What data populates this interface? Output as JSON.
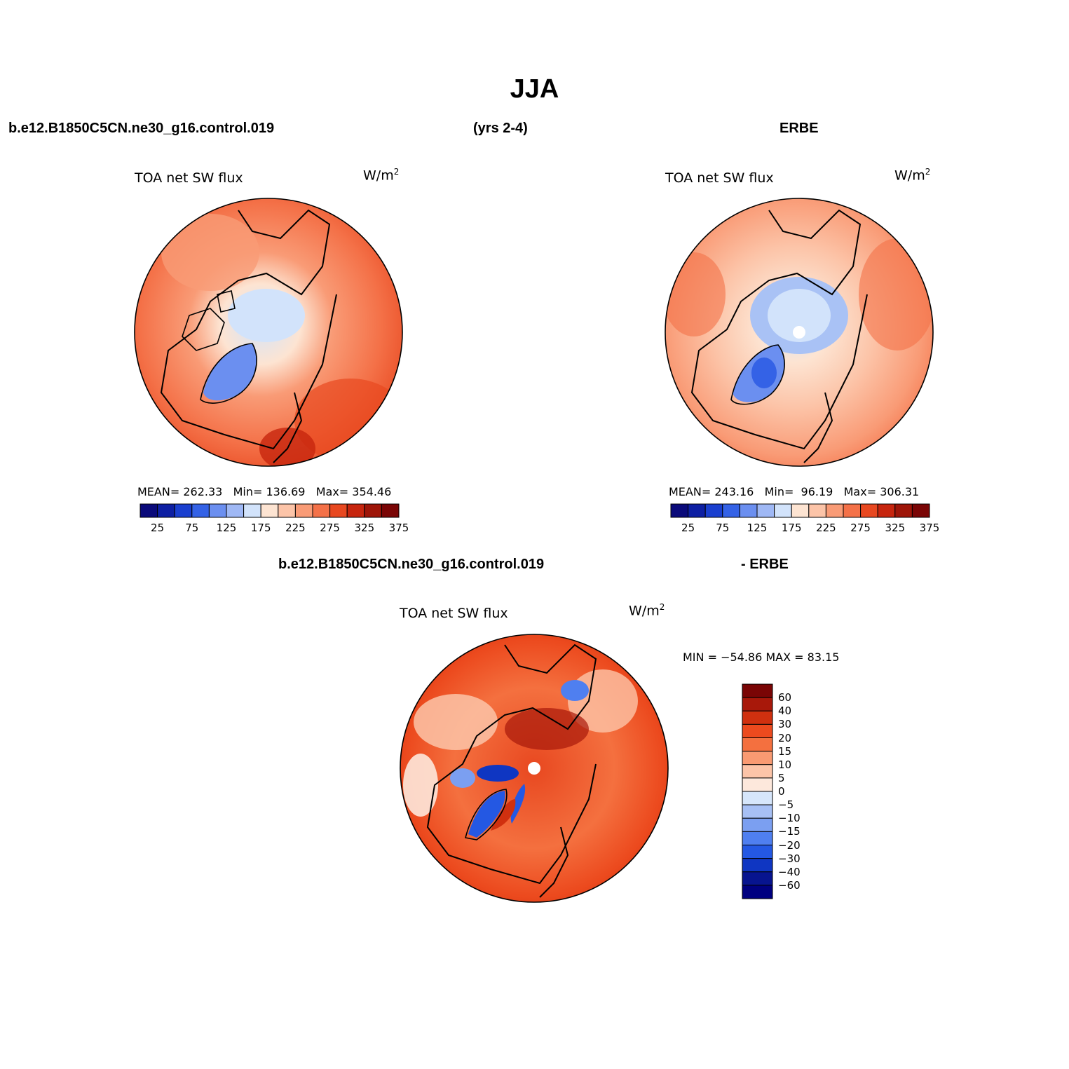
{
  "figure": {
    "title": "JJA",
    "case_name": "b.e12.B1850C5CN.ne30_g16.control.019",
    "years": "(yrs 2-4)",
    "obs_name": "ERBE"
  },
  "panels": [
    {
      "id": "model",
      "variable": "TOA net SW flux",
      "unit_base": "W/m",
      "unit_sup": "2",
      "stats": {
        "mean_label": "MEAN=",
        "mean": "262.33",
        "min_label": "Min=",
        "min": "136.69",
        "max_label": "Max=",
        "max": "354.46"
      }
    },
    {
      "id": "obs",
      "header": "ERBE",
      "variable": "TOA net SW flux",
      "unit_base": "W/m",
      "unit_sup": "2",
      "stats": {
        "mean_label": "MEAN=",
        "mean": "243.16",
        "min_label": "Min=",
        "min": "96.19",
        "max_label": "Max=",
        "max": "306.31"
      }
    },
    {
      "id": "diff",
      "header_case": "b.e12.B1850C5CN.ne30_g16.control.019",
      "header_obs": "- ERBE",
      "variable": "TOA net SW flux",
      "unit_base": "W/m",
      "unit_sup": "2",
      "minmax": "MIN = −54.86 MAX =  83.15"
    }
  ],
  "colorbars": {
    "absolute": {
      "tick_labels": [
        "25",
        "75",
        "125",
        "175",
        "225",
        "275",
        "325",
        "375"
      ],
      "colors": [
        "#0a0a7a",
        "#0d1fa3",
        "#1a3fcf",
        "#3462e6",
        "#6b8ff0",
        "#9fb8f5",
        "#d2e3fb",
        "#fde4d2",
        "#fcc4a8",
        "#f99b76",
        "#f47148",
        "#e84820",
        "#c7250e",
        "#9e1508",
        "#7a0505"
      ]
    },
    "difference": {
      "tick_labels": [
        "60",
        "40",
        "30",
        "20",
        "15",
        "10",
        "5",
        "0",
        "−5",
        "−10",
        "−15",
        "−20",
        "−30",
        "−40",
        "−60"
      ],
      "colors": [
        "#7a0505",
        "#a8180a",
        "#d0300f",
        "#ec4a1e",
        "#f4703f",
        "#f99a72",
        "#fcc4a8",
        "#fde8dc",
        "#d6e6fb",
        "#a7c0f5",
        "#7b9ff1",
        "#4f7ff0",
        "#2458e3",
        "#0f36c2",
        "#07148f",
        "#000080"
      ]
    }
  },
  "map_colors": {
    "land_outline": "#000000",
    "pole_marker": "#ffffff"
  }
}
